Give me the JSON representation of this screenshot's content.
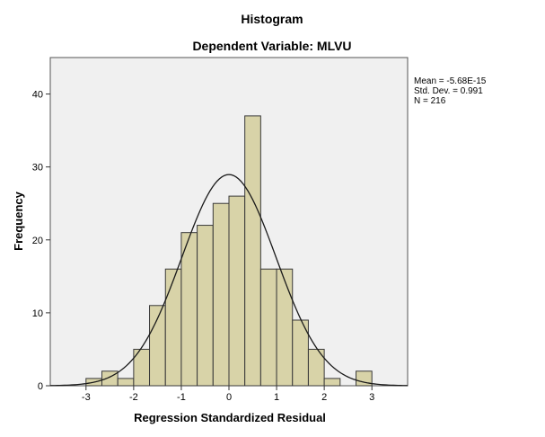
{
  "chart_data": {
    "type": "bar",
    "title": "Histogram",
    "subtitle": "Dependent Variable: MLVU",
    "xlabel": "Regression Standardized Residual",
    "ylabel": "Frequency",
    "bin_width": 0.333,
    "bin_starts": [
      -3.0,
      -2.667,
      -2.333,
      -2.0,
      -1.667,
      -1.333,
      -1.0,
      -0.667,
      -0.333,
      0.0,
      0.333,
      0.667,
      1.0,
      1.333,
      1.667,
      2.0,
      2.333,
      2.667
    ],
    "values": [
      1,
      2,
      1,
      5,
      11,
      16,
      21,
      22,
      25,
      26,
      37,
      16,
      16,
      9,
      5,
      1,
      0,
      2
    ],
    "xlim": [
      -3.75,
      3.75
    ],
    "ylim": [
      0,
      45
    ],
    "x_ticks": [
      -3,
      -2,
      -1,
      0,
      1,
      2,
      3
    ],
    "x_tick_labels": [
      "-3",
      "-2",
      "-1",
      "0",
      "1",
      "2",
      "3"
    ],
    "y_ticks": [
      0,
      10,
      20,
      30,
      40
    ],
    "y_tick_labels": [
      "0",
      "10",
      "20",
      "30",
      "40"
    ],
    "normal_curve": {
      "mean": 0,
      "sd": 0.991,
      "n": 216
    },
    "stats": {
      "mean": "Mean = -5.68E-15",
      "std_dev": "Std. Dev. = 0.991",
      "n": "N = 216"
    },
    "colors": {
      "bar_fill": "#d8d3a8",
      "bar_stroke": "#3a3a3a",
      "plot_bg": "#f0f0f0",
      "curve": "#1a1a1a"
    }
  }
}
